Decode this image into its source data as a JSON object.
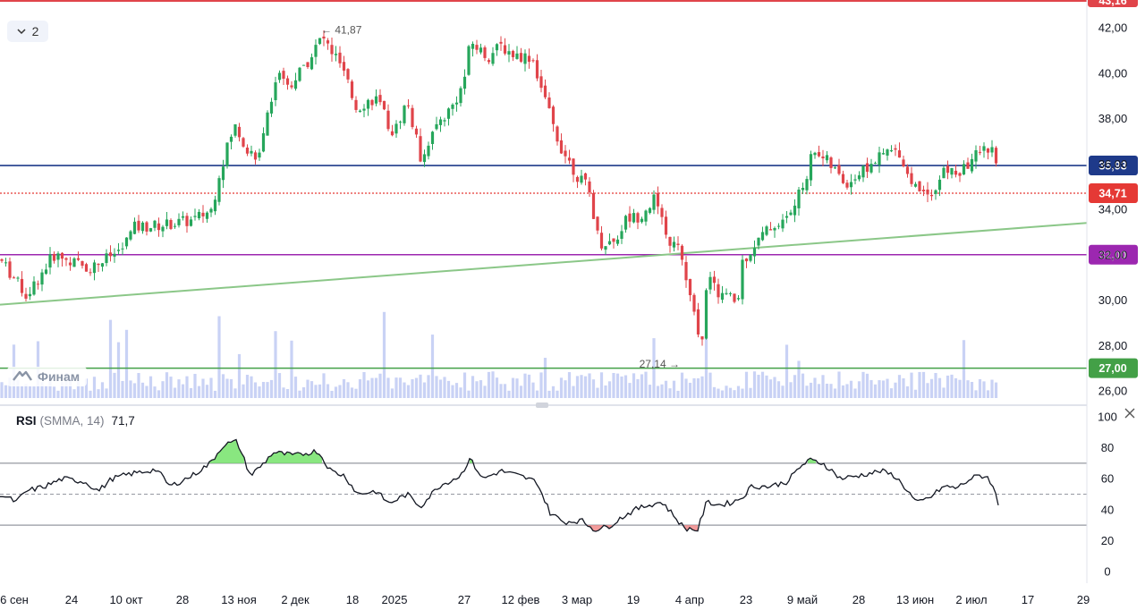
{
  "chart_data": [
    {
      "type": "candlestick",
      "pane": "price",
      "currency_axis": "RUB",
      "y_ticks": [
        "42,00",
        "40,00",
        "38,00",
        "36,00",
        "34,00",
        "32,00",
        "30,00",
        "28,00",
        "26,00"
      ],
      "ylim": [
        26,
        43.16
      ],
      "top_price_label": "43,16",
      "price_lines": [
        {
          "label": "35,93",
          "value": 35.93,
          "color": "#1e3a8a",
          "style": "solid"
        },
        {
          "label": "34,71",
          "value": 34.71,
          "color": "#e53935",
          "style": "dotted"
        },
        {
          "label": "32,00",
          "value": 32.0,
          "color": "#9c27b0",
          "style": "solid"
        },
        {
          "label": "27,00",
          "value": 27.0,
          "color": "#43a047",
          "style": "solid"
        }
      ],
      "trendline": {
        "from": {
          "date": "2024-09-06",
          "price": 29.8
        },
        "to": {
          "date": "2025-07-31",
          "price": 33.4
        },
        "color": "#8bc788"
      },
      "annotations": [
        {
          "text": "← 41,87",
          "value": 41.87,
          "kind": "high"
        },
        {
          "text": "27,14 →",
          "value": 27.14,
          "kind": "low"
        }
      ],
      "volume_color": "#c9d2f5",
      "up_color": "#26a65b",
      "down_color": "#e0444a"
    },
    {
      "type": "line",
      "pane": "rsi",
      "indicator": "RSI",
      "params": "(SMMA, 14)",
      "current_value": "71,7",
      "y_ticks": [
        "100",
        "80",
        "60",
        "40",
        "20",
        "0"
      ],
      "ylim": [
        0,
        100
      ],
      "bands": {
        "upper": 70,
        "middle": 50,
        "lower": 30
      },
      "overbought_fill": "#74e36a",
      "oversold_fill": "#f08a8a",
      "line_color": "#131722"
    }
  ],
  "x_axis_labels": [
    "6 сен",
    "24",
    "10 окт",
    "28",
    "13 ноя",
    "2 дек",
    "18",
    "2025",
    "27",
    "12 фев",
    "3 мар",
    "19",
    "4 апр",
    "23",
    "9 май",
    "28",
    "13 июн",
    "2 июл",
    "17",
    "29"
  ],
  "ui": {
    "collapse_count": "2",
    "watermark": "Финам"
  }
}
